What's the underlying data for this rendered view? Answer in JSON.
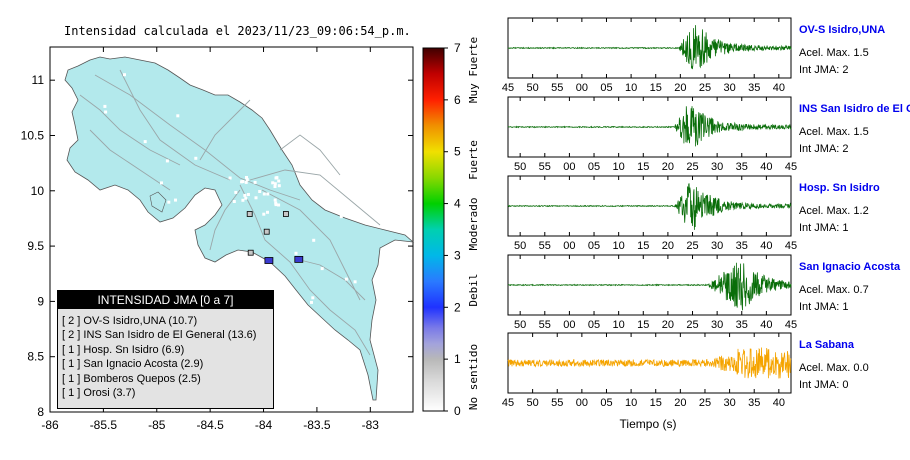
{
  "map_title": "Intensidad calculada el 2023/11/23_09:06:54_p.m.",
  "colorbar": {
    "ticks": [
      "0",
      "1",
      "2",
      "3",
      "4",
      "5",
      "6",
      "7"
    ],
    "labels": [
      "No sentido",
      "Debil",
      "Moderado",
      "Fuerte",
      "Muy Fuerte"
    ]
  },
  "legend": {
    "title": "INTENSIDAD JMA [0 a 7]",
    "rows": [
      "[ 2 ]  OV-S Isidro,UNA (10.7)",
      "[ 2 ]  INS San Isidro de El General (13.6)",
      "[ 1 ]  Hosp. Sn Isidro (6.9)",
      "[ 1 ]  San Ignacio Acosta (2.9)",
      "[ 1 ]  Bomberos Quepos (2.5)",
      "[ 1 ]  Orosi (3.7)"
    ]
  },
  "colors": {
    "land": "#b3e9ec",
    "waveform_green": "#0a6e0a",
    "waveform_orange": "#f5a400",
    "station_name": "#0000ee"
  },
  "chart_data": [
    {
      "type": "scatter",
      "title": "Intensidad calculada el 2023/11/23_09:06:54_p.m.",
      "xlim": [
        -86,
        -82.6
      ],
      "ylim": [
        8,
        11.3
      ],
      "x_ticks": [
        -86,
        -85.5,
        -85,
        -84.5,
        -84,
        -83.5,
        -83
      ],
      "y_ticks": [
        8,
        8.5,
        9,
        9.5,
        10,
        10.5,
        11
      ],
      "station_markers": [
        {
          "lon": -83.67,
          "lat": 9.38,
          "intensity": 2
        },
        {
          "lon": -83.95,
          "lat": 9.37,
          "intensity": 2
        },
        {
          "lon": -84.13,
          "lat": 9.79,
          "intensity": 1
        },
        {
          "lon": -83.79,
          "lat": 9.79,
          "intensity": 1
        },
        {
          "lon": -83.97,
          "lat": 9.63,
          "intensity": 1
        },
        {
          "lon": -84.12,
          "lat": 9.44,
          "intensity": 1
        }
      ]
    },
    {
      "type": "line",
      "xlabel": "Tiempo (s)",
      "panels": [
        {
          "name": "OV-S Isidro,UNA",
          "acel_max": "1.5",
          "int_jma": "2",
          "x_ticks": [
            "45",
            "50",
            "55",
            "00",
            "05",
            "10",
            "15",
            "20",
            "25",
            "30",
            "35",
            "40"
          ],
          "onset": 0.605,
          "peak": 0.66,
          "color": "green"
        },
        {
          "name": "INS San Isidro de El Ge",
          "acel_max": "1.5",
          "int_jma": "2",
          "x_ticks": [
            "50",
            "55",
            "00",
            "05",
            "10",
            "15",
            "20",
            "25",
            "30",
            "35",
            "40",
            "45"
          ],
          "onset": 0.59,
          "peak": 0.64,
          "color": "green"
        },
        {
          "name": "Hosp. Sn Isidro",
          "acel_max": "1.2",
          "int_jma": "1",
          "x_ticks": [
            "50",
            "55",
            "00",
            "05",
            "10",
            "15",
            "20",
            "25",
            "30",
            "35",
            "40",
            "45"
          ],
          "onset": 0.59,
          "peak": 0.65,
          "color": "green"
        },
        {
          "name": "San Ignacio Acosta",
          "acel_max": "0.7",
          "int_jma": "1",
          "x_ticks": [
            "50",
            "55",
            "00",
            "05",
            "10",
            "15",
            "20",
            "25",
            "30",
            "35",
            "40",
            "45"
          ],
          "onset": 0.71,
          "peak": 0.83,
          "color": "green"
        },
        {
          "name": "La Sabana",
          "acel_max": "0.0",
          "int_jma": "0",
          "x_ticks": [
            "45",
            "50",
            "55",
            "00",
            "05",
            "10",
            "15",
            "20",
            "25",
            "30",
            "35",
            "40"
          ],
          "onset": 0.72,
          "peak": 0.9,
          "color": "orange"
        }
      ]
    }
  ],
  "panel_text": {
    "acel_prefix": "Acel. Max. ",
    "int_prefix": "Int JMA: "
  }
}
